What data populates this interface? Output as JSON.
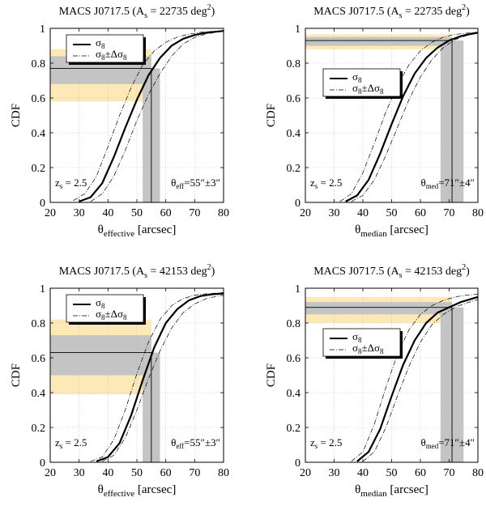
{
  "colors": {
    "band_outer": "#fde8b8",
    "band_inner": "#c4c4c4",
    "curve": "#000000",
    "grid": "#bbbbbb"
  },
  "chart_data": [
    {
      "type": "line",
      "title": "MACS J0717.5 (A",
      "title_sub": "s",
      "title_eq": " = 22735 deg",
      "title_sup": "2",
      "title_close": ")",
      "ylabel": "CDF",
      "xlabel_sym": "θ",
      "xlabel_sub": "effective",
      "xlabel_unit": " [arcsec]",
      "xlim": [
        20,
        80
      ],
      "ylim": [
        0,
        1
      ],
      "xticks": [
        20,
        30,
        40,
        50,
        60,
        70,
        80
      ],
      "yticks": [
        0,
        0.2,
        0.4,
        0.6,
        0.8,
        1
      ],
      "ytick_labels": [
        "0",
        "0.2",
        "0.4",
        "0.6",
        "0.8",
        "1"
      ],
      "legend": {
        "placement": "top-left",
        "main": "σ",
        "main_sub": "8",
        "band": "σ",
        "band_sub": "8",
        "band_pm": "±Δσ",
        "band_pm_sub": "8"
      },
      "zs_label": {
        "sym": "z",
        "sub": "s",
        "val": " = 2.5"
      },
      "theta_label": {
        "sym": "θ",
        "sub": "eff",
        "val": "=55″±3″"
      },
      "theta_obs": 55,
      "theta_err": 3,
      "cdf_at_obs": 0.77,
      "inner_band": [
        0.68,
        0.84
      ],
      "outer_band": [
        0.58,
        0.88
      ],
      "series": [
        {
          "name": "σ8",
          "x": [
            30,
            34,
            38,
            42,
            46,
            50,
            54,
            58,
            62,
            66,
            70,
            74,
            80
          ],
          "y": [
            0.005,
            0.03,
            0.11,
            0.26,
            0.43,
            0.59,
            0.73,
            0.83,
            0.9,
            0.94,
            0.962,
            0.975,
            0.985
          ]
        },
        {
          "name": "σ8+Δσ8",
          "x": [
            28,
            32,
            36,
            40,
            44,
            48,
            52,
            56,
            60,
            64,
            68,
            72,
            76,
            80
          ],
          "y": [
            0.01,
            0.05,
            0.15,
            0.32,
            0.5,
            0.66,
            0.79,
            0.87,
            0.92,
            0.95,
            0.967,
            0.977,
            0.982,
            0.985
          ]
        },
        {
          "name": "σ8−Δσ8",
          "x": [
            34,
            38,
            42,
            46,
            50,
            54,
            58,
            62,
            66,
            70,
            74,
            80
          ],
          "y": [
            0.005,
            0.05,
            0.15,
            0.3,
            0.47,
            0.62,
            0.74,
            0.84,
            0.91,
            0.948,
            0.968,
            0.985
          ]
        }
      ]
    },
    {
      "type": "line",
      "title": "MACS J0717.5 (A",
      "title_sub": "s",
      "title_eq": " = 22735 deg",
      "title_sup": "2",
      "title_close": ")",
      "ylabel": "CDF",
      "xlabel_sym": "θ",
      "xlabel_sub": "median",
      "xlabel_unit": " [arcsec]",
      "xlim": [
        20,
        80
      ],
      "ylim": [
        0,
        1
      ],
      "xticks": [
        20,
        30,
        40,
        50,
        60,
        70,
        80
      ],
      "yticks": [
        0,
        0.2,
        0.4,
        0.6,
        0.8,
        1
      ],
      "ytick_labels": [
        "0",
        "0.2",
        "0.4",
        "0.6",
        "0.8",
        "1"
      ],
      "legend": {
        "placement": "center",
        "main": "σ",
        "main_sub": "8",
        "band": "σ",
        "band_sub": "8",
        "band_pm": "±Δσ",
        "band_pm_sub": "8"
      },
      "zs_label": {
        "sym": "z",
        "sub": "s",
        "val": " = 2.5"
      },
      "theta_label": {
        "sym": "θ",
        "sub": "med",
        "val": "=71″±4″"
      },
      "theta_obs": 71,
      "theta_err": 4,
      "cdf_at_obs": 0.93,
      "inner_band": [
        0.9,
        0.95
      ],
      "outer_band": [
        0.88,
        0.965
      ],
      "series": [
        {
          "name": "σ8",
          "x": [
            34,
            38,
            42,
            46,
            50,
            54,
            58,
            62,
            66,
            70,
            74,
            78,
            80
          ],
          "y": [
            0.005,
            0.04,
            0.13,
            0.28,
            0.45,
            0.61,
            0.74,
            0.83,
            0.89,
            0.93,
            0.955,
            0.97,
            0.975
          ]
        },
        {
          "name": "σ8+Δσ8",
          "x": [
            32,
            36,
            40,
            44,
            48,
            52,
            56,
            60,
            64,
            68,
            72,
            76,
            80
          ],
          "y": [
            0.005,
            0.05,
            0.17,
            0.34,
            0.52,
            0.67,
            0.79,
            0.87,
            0.92,
            0.95,
            0.965,
            0.972,
            0.978
          ]
        },
        {
          "name": "σ8−Δσ8",
          "x": [
            36,
            40,
            44,
            48,
            52,
            56,
            60,
            64,
            68,
            72,
            76,
            80
          ],
          "y": [
            0.005,
            0.04,
            0.13,
            0.27,
            0.43,
            0.59,
            0.72,
            0.82,
            0.89,
            0.935,
            0.958,
            0.972
          ]
        }
      ]
    },
    {
      "type": "line",
      "title": "MACS J0717.5 (A",
      "title_sub": "s",
      "title_eq": " = 42153 deg",
      "title_sup": "2",
      "title_close": ")",
      "ylabel": "CDF",
      "xlabel_sym": "θ",
      "xlabel_sub": "effective",
      "xlabel_unit": " [arcsec]",
      "xlim": [
        20,
        80
      ],
      "ylim": [
        0,
        1
      ],
      "xticks": [
        20,
        30,
        40,
        50,
        60,
        70,
        80
      ],
      "yticks": [
        0,
        0.2,
        0.4,
        0.6,
        0.8,
        1
      ],
      "ytick_labels": [
        "0",
        "0.2",
        "0.4",
        "0.6",
        "0.8",
        "1"
      ],
      "legend": {
        "placement": "top-left",
        "main": "σ",
        "main_sub": "8",
        "band": "σ",
        "band_sub": "8",
        "band_pm": "±Δσ",
        "band_pm_sub": "8"
      },
      "zs_label": {
        "sym": "z",
        "sub": "s",
        "val": " = 2.5"
      },
      "theta_label": {
        "sym": "θ",
        "sub": "eff",
        "val": "=55″±3″"
      },
      "theta_obs": 55,
      "theta_err": 3,
      "cdf_at_obs": 0.63,
      "inner_band": [
        0.5,
        0.73
      ],
      "outer_band": [
        0.39,
        0.82
      ],
      "series": [
        {
          "name": "σ8",
          "x": [
            36,
            40,
            44,
            48,
            52,
            56,
            60,
            64,
            68,
            72,
            76,
            80
          ],
          "y": [
            0.005,
            0.03,
            0.11,
            0.27,
            0.47,
            0.66,
            0.8,
            0.88,
            0.93,
            0.955,
            0.965,
            0.97
          ]
        },
        {
          "name": "σ8+Δσ8",
          "x": [
            34,
            38,
            42,
            46,
            50,
            54,
            58,
            62,
            66,
            70,
            74,
            78,
            80
          ],
          "y": [
            0.005,
            0.03,
            0.13,
            0.3,
            0.51,
            0.69,
            0.82,
            0.9,
            0.94,
            0.96,
            0.968,
            0.972,
            0.975
          ]
        },
        {
          "name": "σ8−Δσ8",
          "x": [
            38,
            42,
            46,
            50,
            54,
            58,
            62,
            66,
            70,
            74,
            78,
            80
          ],
          "y": [
            0.005,
            0.04,
            0.14,
            0.3,
            0.48,
            0.64,
            0.77,
            0.86,
            0.91,
            0.94,
            0.955,
            0.96
          ]
        }
      ]
    },
    {
      "type": "line",
      "title": "MACS J0717.5 (A",
      "title_sub": "s",
      "title_eq": " = 42153 deg",
      "title_sup": "2",
      "title_close": ")",
      "ylabel": "CDF",
      "xlabel_sym": "θ",
      "xlabel_sub": "median",
      "xlabel_unit": " [arcsec]",
      "xlim": [
        20,
        80
      ],
      "ylim": [
        0,
        1
      ],
      "xticks": [
        20,
        30,
        40,
        50,
        60,
        70,
        80
      ],
      "yticks": [
        0,
        0.2,
        0.4,
        0.6,
        0.8,
        1
      ],
      "ytick_labels": [
        "0",
        "0.2",
        "0.4",
        "0.6",
        "0.8",
        "1"
      ],
      "legend": {
        "placement": "center",
        "main": "σ",
        "main_sub": "8",
        "band": "σ",
        "band_sub": "8",
        "band_pm": "±Δσ",
        "band_pm_sub": "8"
      },
      "zs_label": {
        "sym": "z",
        "sub": "s",
        "val": " = 2.5"
      },
      "theta_label": {
        "sym": "θ",
        "sub": "med",
        "val": "=71″±4″"
      },
      "theta_obs": 71,
      "theta_err": 4,
      "cdf_at_obs": 0.89,
      "inner_band": [
        0.85,
        0.92
      ],
      "outer_band": [
        0.8,
        0.95
      ],
      "series": [
        {
          "name": "σ8",
          "x": [
            38,
            42,
            46,
            50,
            54,
            58,
            62,
            66,
            70,
            74,
            78,
            80
          ],
          "y": [
            0.005,
            0.06,
            0.19,
            0.38,
            0.56,
            0.7,
            0.8,
            0.86,
            0.89,
            0.92,
            0.94,
            0.95
          ]
        },
        {
          "name": "σ8+Δσ8",
          "x": [
            36,
            40,
            44,
            48,
            52,
            56,
            60,
            64,
            68,
            72,
            76,
            80
          ],
          "y": [
            0.005,
            0.06,
            0.22,
            0.43,
            0.62,
            0.76,
            0.85,
            0.9,
            0.93,
            0.95,
            0.96,
            0.965
          ]
        },
        {
          "name": "σ8−Δσ8",
          "x": [
            40,
            44,
            48,
            52,
            56,
            60,
            64,
            68,
            72,
            76,
            80
          ],
          "y": [
            0.005,
            0.06,
            0.2,
            0.38,
            0.55,
            0.69,
            0.79,
            0.85,
            0.89,
            0.915,
            0.935
          ]
        }
      ]
    }
  ]
}
